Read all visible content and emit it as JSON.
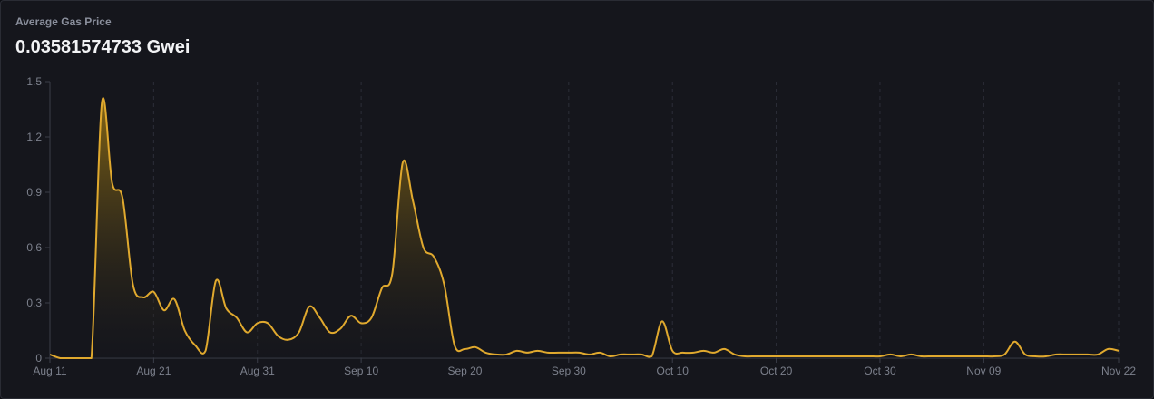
{
  "header": {
    "title": "Average Gas Price",
    "value": "0.03581574733 Gwei"
  },
  "colors": {
    "line": "#e0a92e",
    "fill_top": "#8a6a14",
    "grid": "#2c2e38",
    "axis": "#3a3d48",
    "text": "#7c808c"
  },
  "chart_data": {
    "type": "area",
    "title": "Average Gas Price",
    "xlabel": "",
    "ylabel": "",
    "ylim": [
      0,
      1.5
    ],
    "yticks": [
      "0",
      "0.3",
      "0.6",
      "0.9",
      "1.2",
      "1.5"
    ],
    "xticks": [
      "Aug 11",
      "Aug 21",
      "Aug 31",
      "Sep 10",
      "Sep 20",
      "Sep 30",
      "Oct 10",
      "Oct 20",
      "Oct 30",
      "Nov 09",
      "Nov 22"
    ],
    "grid": "vertical dashed",
    "x": [
      "Aug 11",
      "Aug 12",
      "Aug 13",
      "Aug 14",
      "Aug 15",
      "Aug 16",
      "Aug 17",
      "Aug 18",
      "Aug 19",
      "Aug 20",
      "Aug 21",
      "Aug 22",
      "Aug 23",
      "Aug 24",
      "Aug 25",
      "Aug 26",
      "Aug 27",
      "Aug 28",
      "Aug 29",
      "Aug 30",
      "Aug 31",
      "Sep 01",
      "Sep 02",
      "Sep 03",
      "Sep 04",
      "Sep 05",
      "Sep 06",
      "Sep 07",
      "Sep 08",
      "Sep 09",
      "Sep 10",
      "Sep 11",
      "Sep 12",
      "Sep 13",
      "Sep 14",
      "Sep 15",
      "Sep 16",
      "Sep 17",
      "Sep 18",
      "Sep 19",
      "Sep 20",
      "Sep 21",
      "Sep 22",
      "Sep 23",
      "Sep 24",
      "Sep 25",
      "Sep 26",
      "Sep 27",
      "Sep 28",
      "Sep 29",
      "Sep 30",
      "Oct 01",
      "Oct 02",
      "Oct 03",
      "Oct 04",
      "Oct 05",
      "Oct 06",
      "Oct 07",
      "Oct 08",
      "Oct 09",
      "Oct 10",
      "Oct 11",
      "Oct 12",
      "Oct 13",
      "Oct 14",
      "Oct 15",
      "Oct 16",
      "Oct 17",
      "Oct 18",
      "Oct 19",
      "Oct 20",
      "Oct 21",
      "Oct 22",
      "Oct 23",
      "Oct 24",
      "Oct 25",
      "Oct 26",
      "Oct 27",
      "Oct 28",
      "Oct 29",
      "Oct 30",
      "Oct 31",
      "Nov 01",
      "Nov 02",
      "Nov 03",
      "Nov 04",
      "Nov 05",
      "Nov 06",
      "Nov 07",
      "Nov 08",
      "Nov 09",
      "Nov 10",
      "Nov 11",
      "Nov 12",
      "Nov 13",
      "Nov 14",
      "Nov 15",
      "Nov 16",
      "Nov 17",
      "Nov 18",
      "Nov 19",
      "Nov 20",
      "Nov 21",
      "Nov 22"
    ],
    "series": [
      {
        "values": [
          0.02,
          0.0,
          0.0,
          0.0,
          0.0,
          1.38,
          0.95,
          0.87,
          0.4,
          0.33,
          0.36,
          0.26,
          0.32,
          0.15,
          0.07,
          0.04,
          0.42,
          0.27,
          0.22,
          0.14,
          0.19,
          0.19,
          0.12,
          0.1,
          0.14,
          0.28,
          0.22,
          0.14,
          0.16,
          0.23,
          0.19,
          0.22,
          0.38,
          0.46,
          1.06,
          0.85,
          0.6,
          0.55,
          0.4,
          0.07,
          0.05,
          0.06,
          0.03,
          0.02,
          0.02,
          0.04,
          0.03,
          0.04,
          0.03,
          0.03,
          0.03,
          0.03,
          0.02,
          0.03,
          0.01,
          0.02,
          0.02,
          0.02,
          0.01,
          0.2,
          0.04,
          0.03,
          0.03,
          0.04,
          0.03,
          0.05,
          0.02,
          0.01,
          0.01,
          0.01,
          0.01,
          0.01,
          0.01,
          0.01,
          0.01,
          0.01,
          0.01,
          0.01,
          0.01,
          0.01,
          0.01,
          0.02,
          0.01,
          0.02,
          0.01,
          0.01,
          0.01,
          0.01,
          0.01,
          0.01,
          0.01,
          0.01,
          0.02,
          0.09,
          0.02,
          0.01,
          0.01,
          0.02,
          0.02,
          0.02,
          0.02,
          0.02,
          0.05,
          0.04
        ]
      }
    ]
  }
}
